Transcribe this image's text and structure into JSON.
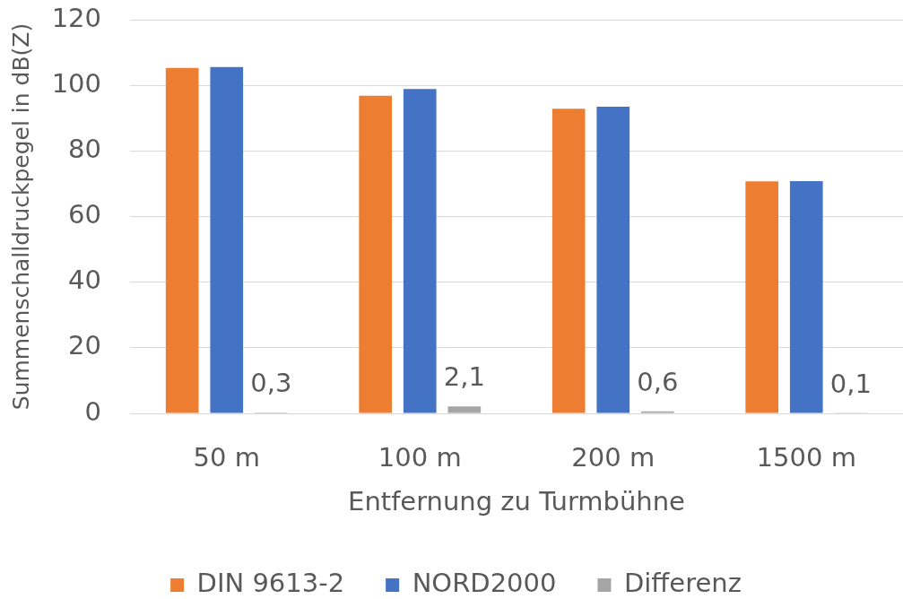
{
  "chart_data": {
    "type": "bar",
    "xlabel": "Entfernung zu Turmbühne",
    "ylabel": "Summenschalldruckpegel in dB(Z)",
    "categories": [
      "50 m",
      "100 m",
      "200 m",
      "1500 m"
    ],
    "series": [
      {
        "name": "DIN 9613-2",
        "color": "#ed7d31",
        "values": [
          105.3,
          96.8,
          92.9,
          70.7
        ]
      },
      {
        "name": "NORD2000",
        "color": "#4472c4",
        "values": [
          105.6,
          98.9,
          93.5,
          70.8
        ]
      },
      {
        "name": "Differenz",
        "color": "#a5a5a5",
        "values": [
          0.3,
          2.1,
          0.6,
          0.1
        ],
        "value_labels": [
          "0,3",
          "2,1",
          "0,6",
          "0,1"
        ]
      }
    ],
    "ylim": [
      0,
      120
    ],
    "yticks": [
      0,
      20,
      40,
      60,
      80,
      100,
      120
    ],
    "grid": "y",
    "legend": "bottom"
  }
}
